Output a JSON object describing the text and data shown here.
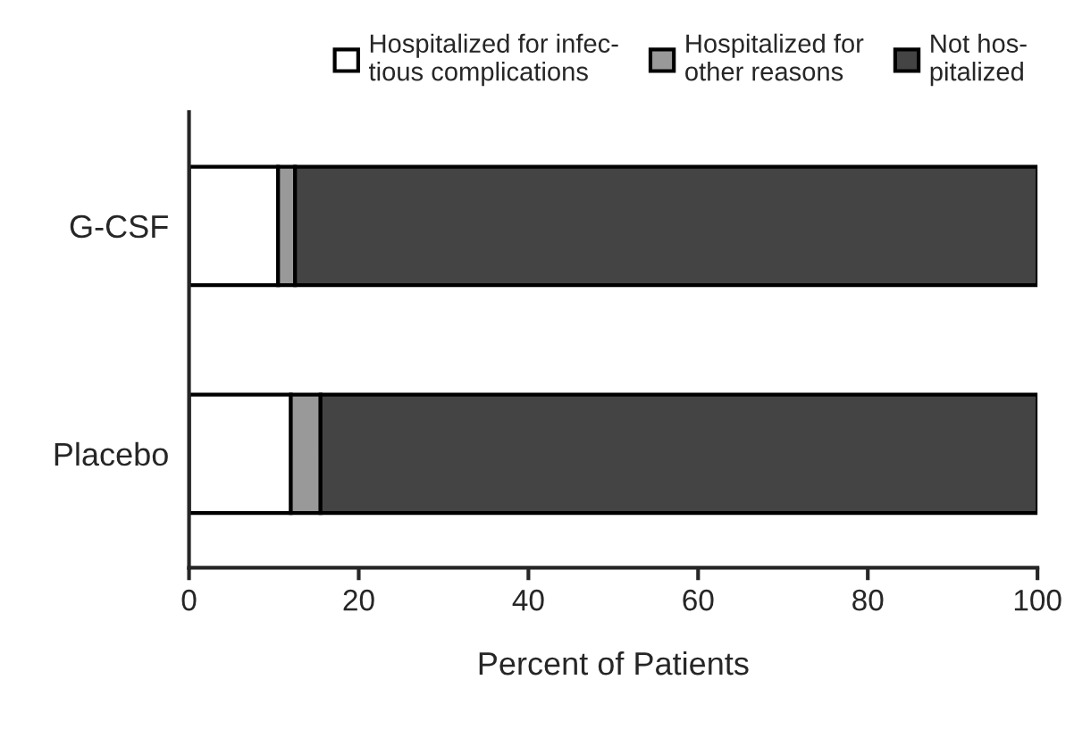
{
  "chart_data": {
    "type": "bar",
    "orientation": "horizontal",
    "stacked": true,
    "xlabel": "Percent of Patients",
    "categories": [
      "G-CSF",
      "Placebo"
    ],
    "series": [
      {
        "name": "Hospitalized for infec-\ntious complications",
        "color": "#ffffff",
        "values": [
          10.5,
          12
        ]
      },
      {
        "name": "Hospitalized for\nother reasons",
        "color": "#999999",
        "values": [
          2,
          3.5
        ]
      },
      {
        "name": "Not hos-\npitalized",
        "color": "#444444",
        "values": [
          87.5,
          84.5
        ]
      }
    ],
    "xlim": [
      0,
      100
    ],
    "xticks": [
      0,
      20,
      40,
      60,
      80,
      100
    ],
    "legend": "top",
    "grid": false
  }
}
